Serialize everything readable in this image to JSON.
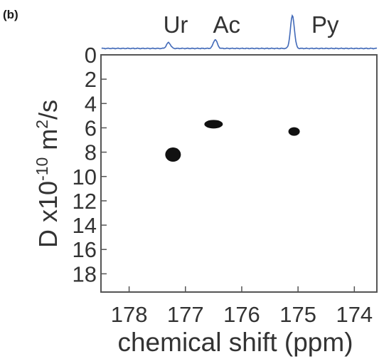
{
  "panel_label": "(b)",
  "chart_data": {
    "type": "scatter",
    "xlabel": "chemical shift (ppm)",
    "ylabel_parts": {
      "prefix": "D  x10",
      "exp1": "-10",
      "middle": " m",
      "exp2": "2",
      "suffix": "/s"
    },
    "xlim": [
      178.5,
      173.6
    ],
    "ylim": [
      0,
      19.5
    ],
    "x_reversed": true,
    "y_reversed": true,
    "x_ticks": [
      178,
      177,
      176,
      175,
      174
    ],
    "y_ticks": [
      0,
      2,
      4,
      6,
      8,
      10,
      12,
      14,
      16,
      18
    ],
    "points": [
      {
        "label": "Ur",
        "x": 177.22,
        "y": 8.2
      },
      {
        "label": "Ac",
        "x": 176.5,
        "y": 5.7
      },
      {
        "label": "Py",
        "x": 175.07,
        "y": 6.3
      }
    ],
    "spectrum_peaks": [
      {
        "label": "Ur",
        "x": 177.3,
        "height": 0.18
      },
      {
        "label": "Ac",
        "x": 176.47,
        "height": 0.27
      },
      {
        "label": "Py",
        "x": 175.1,
        "height": 1.0
      }
    ],
    "colors": {
      "spectrum": "#4169b8",
      "marker": "#111111",
      "axes": "#555555",
      "text": "#333333"
    }
  }
}
